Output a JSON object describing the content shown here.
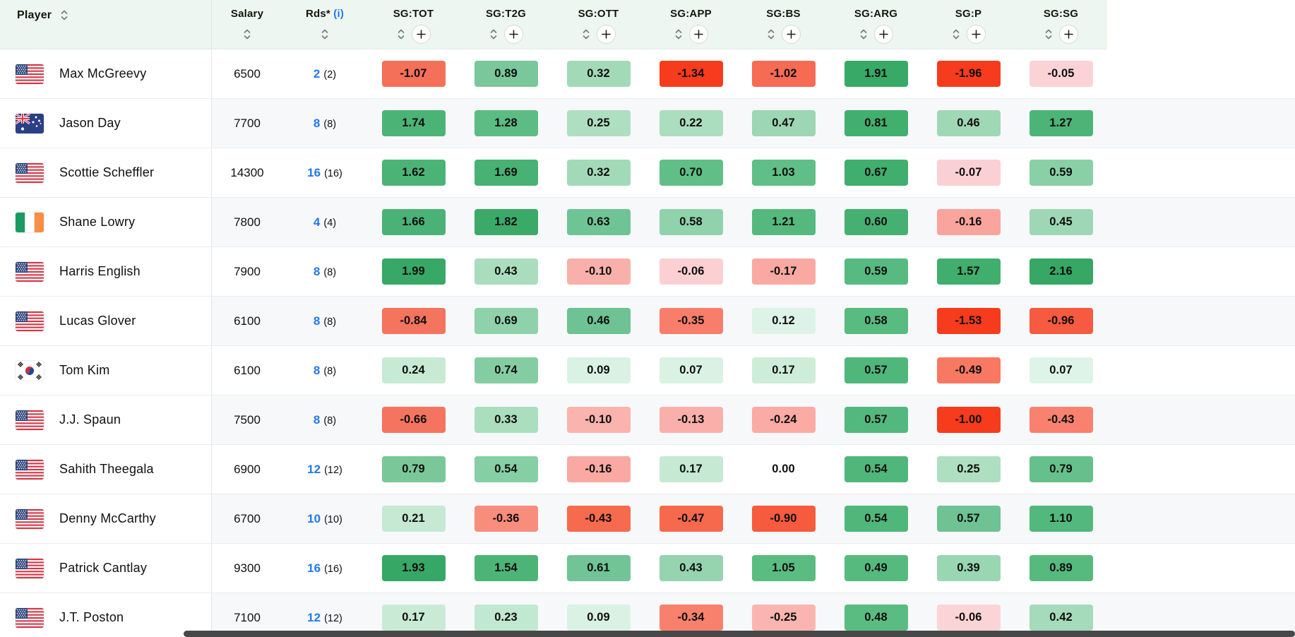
{
  "colors": {
    "header_bg": "#edf6f0",
    "link_blue": "#2278f0",
    "row_alt_bg": "#f7f8fa",
    "row_border": "#eaebed",
    "scrollbar": "#484848"
  },
  "icons": {
    "sort": "updown-chevrons",
    "add_column": "plus-circle",
    "info": "circled-i-link"
  },
  "header": {
    "columns": [
      {
        "id": "player",
        "label": "Player",
        "type": "player"
      },
      {
        "id": "salary",
        "label": "Salary",
        "type": "stat"
      },
      {
        "id": "rds",
        "label": "Rds*",
        "info_label": "(i)",
        "type": "stat"
      },
      {
        "id": "sg_tot",
        "label": "SG:TOT",
        "type": "sg"
      },
      {
        "id": "sg_t2g",
        "label": "SG:T2G",
        "type": "sg"
      },
      {
        "id": "sg_ott",
        "label": "SG:OTT",
        "type": "sg"
      },
      {
        "id": "sg_app",
        "label": "SG:APP",
        "type": "sg"
      },
      {
        "id": "sg_bs",
        "label": "SG:BS",
        "type": "sg"
      },
      {
        "id": "sg_arg",
        "label": "SG:ARG",
        "type": "sg"
      },
      {
        "id": "sg_p",
        "label": "SG:P",
        "type": "sg"
      },
      {
        "id": "sg_sg",
        "label": "SG:SG",
        "type": "sg"
      }
    ]
  },
  "players": [
    {
      "name": "Max McGreevy",
      "flag": "us",
      "salary": "6500",
      "rounds": "2",
      "rounds_paren": "(2)",
      "sg": [
        {
          "v": "-1.07",
          "bg": "#f57059"
        },
        {
          "v": "0.89",
          "bg": "#79c79a"
        },
        {
          "v": "0.32",
          "bg": "#a2dab8"
        },
        {
          "v": "-1.34",
          "bg": "#f73b1d"
        },
        {
          "v": "-1.02",
          "bg": "#f56b53"
        },
        {
          "v": "1.91",
          "bg": "#38a967"
        },
        {
          "v": "-1.96",
          "bg": "#f73b1d"
        },
        {
          "v": "-0.05",
          "bg": "#fbd3d6"
        }
      ]
    },
    {
      "name": "Jason Day",
      "flag": "au",
      "salary": "7700",
      "rounds": "8",
      "rounds_paren": "(8)",
      "sg": [
        {
          "v": "1.74",
          "bg": "#4cb377"
        },
        {
          "v": "1.28",
          "bg": "#5cbc83"
        },
        {
          "v": "0.25",
          "bg": "#aedfc1"
        },
        {
          "v": "0.22",
          "bg": "#abdebe"
        },
        {
          "v": "0.47",
          "bg": "#9cd6b3"
        },
        {
          "v": "0.81",
          "bg": "#41af6e"
        },
        {
          "v": "0.46",
          "bg": "#9fd8b5"
        },
        {
          "v": "1.27",
          "bg": "#4db478"
        }
      ]
    },
    {
      "name": "Scottie Scheffler",
      "flag": "us",
      "salary": "14300",
      "rounds": "16",
      "rounds_paren": "(16)",
      "sg": [
        {
          "v": "1.62",
          "bg": "#4cb377"
        },
        {
          "v": "1.69",
          "bg": "#48b174"
        },
        {
          "v": "0.32",
          "bg": "#a2dab8"
        },
        {
          "v": "0.70",
          "bg": "#60bf87"
        },
        {
          "v": "1.03",
          "bg": "#60bf87"
        },
        {
          "v": "0.67",
          "bg": "#40ae6d"
        },
        {
          "v": "-0.07",
          "bg": "#fbd0d4"
        },
        {
          "v": "0.59",
          "bg": "#89d0a6"
        }
      ]
    },
    {
      "name": "Shane Lowry",
      "flag": "ie",
      "salary": "7800",
      "rounds": "4",
      "rounds_paren": "(4)",
      "sg": [
        {
          "v": "1.66",
          "bg": "#4ab276"
        },
        {
          "v": "1.82",
          "bg": "#3baa69"
        },
        {
          "v": "0.63",
          "bg": "#6fc495"
        },
        {
          "v": "0.58",
          "bg": "#8fd2ab"
        },
        {
          "v": "1.21",
          "bg": "#55b97e"
        },
        {
          "v": "0.60",
          "bg": "#45b071"
        },
        {
          "v": "-0.16",
          "bg": "#f9a59d"
        },
        {
          "v": "0.45",
          "bg": "#9ed7b5"
        }
      ]
    },
    {
      "name": "Harris English",
      "flag": "us",
      "salary": "7900",
      "rounds": "8",
      "rounds_paren": "(8)",
      "sg": [
        {
          "v": "1.99",
          "bg": "#37a866"
        },
        {
          "v": "0.43",
          "bg": "#aaddbd"
        },
        {
          "v": "-0.10",
          "bg": "#f9b0aa"
        },
        {
          "v": "-0.06",
          "bg": "#fcd0d3"
        },
        {
          "v": "-0.17",
          "bg": "#f9a9a2"
        },
        {
          "v": "0.59",
          "bg": "#57ba80"
        },
        {
          "v": "1.57",
          "bg": "#40ae6d"
        },
        {
          "v": "2.16",
          "bg": "#36a765"
        }
      ]
    },
    {
      "name": "Lucas Glover",
      "flag": "us",
      "salary": "6100",
      "rounds": "8",
      "rounds_paren": "(8)",
      "sg": [
        {
          "v": "-0.84",
          "bg": "#f5745e"
        },
        {
          "v": "0.69",
          "bg": "#8ed1aa"
        },
        {
          "v": "0.46",
          "bg": "#6ec294"
        },
        {
          "v": "-0.35",
          "bg": "#f87e6b"
        },
        {
          "v": "0.12",
          "bg": "#def3e7"
        },
        {
          "v": "0.58",
          "bg": "#58bb80"
        },
        {
          "v": "-1.53",
          "bg": "#f73b1d"
        },
        {
          "v": "-0.96",
          "bg": "#f65a40"
        }
      ]
    },
    {
      "name": "Tom Kim",
      "flag": "kr",
      "salary": "6100",
      "rounds": "8",
      "rounds_paren": "(8)",
      "sg": [
        {
          "v": "0.24",
          "bg": "#c7ead5"
        },
        {
          "v": "0.74",
          "bg": "#84cda2"
        },
        {
          "v": "0.09",
          "bg": "#daf2e4"
        },
        {
          "v": "0.07",
          "bg": "#daf2e4"
        },
        {
          "v": "0.17",
          "bg": "#cdedd9"
        },
        {
          "v": "0.57",
          "bg": "#50b77b"
        },
        {
          "v": "-0.49",
          "bg": "#f87862"
        },
        {
          "v": "0.07",
          "bg": "#def4e8"
        }
      ]
    },
    {
      "name": "J.J. Spaun",
      "flag": "us",
      "salary": "7500",
      "rounds": "8",
      "rounds_paren": "(8)",
      "sg": [
        {
          "v": "-0.66",
          "bg": "#f5745f"
        },
        {
          "v": "0.33",
          "bg": "#aadebd"
        },
        {
          "v": "-0.10",
          "bg": "#fab3ad"
        },
        {
          "v": "-0.13",
          "bg": "#fab0aa"
        },
        {
          "v": "-0.24",
          "bg": "#faaba4"
        },
        {
          "v": "0.57",
          "bg": "#53b87d"
        },
        {
          "v": "-1.00",
          "bg": "#f73b1d"
        },
        {
          "v": "-0.43",
          "bg": "#f8816f"
        }
      ]
    },
    {
      "name": "Sahith Theegala",
      "flag": "us",
      "salary": "6900",
      "rounds": "12",
      "rounds_paren": "(12)",
      "sg": [
        {
          "v": "0.79",
          "bg": "#7ac899"
        },
        {
          "v": "0.54",
          "bg": "#86cfa4"
        },
        {
          "v": "-0.16",
          "bg": "#f9a9a2"
        },
        {
          "v": "0.17",
          "bg": "#c5e9d3"
        },
        {
          "v": "0.00",
          "bg": null
        },
        {
          "v": "0.54",
          "bg": "#50b77b"
        },
        {
          "v": "0.25",
          "bg": "#aedfc1"
        },
        {
          "v": "0.79",
          "bg": "#65c08b"
        }
      ]
    },
    {
      "name": "Denny McCarthy",
      "flag": "us",
      "salary": "6700",
      "rounds": "10",
      "rounds_paren": "(10)",
      "sg": [
        {
          "v": "0.21",
          "bg": "#c5e9d3"
        },
        {
          "v": "-0.36",
          "bg": "#f98d7c"
        },
        {
          "v": "-0.43",
          "bg": "#f66a4e"
        },
        {
          "v": "-0.47",
          "bg": "#f6694d"
        },
        {
          "v": "-0.90",
          "bg": "#f65b3e"
        },
        {
          "v": "0.54",
          "bg": "#50b77b"
        },
        {
          "v": "0.57",
          "bg": "#6ec293"
        },
        {
          "v": "1.10",
          "bg": "#52b87d"
        }
      ]
    },
    {
      "name": "Patrick Cantlay",
      "flag": "us",
      "salary": "9300",
      "rounds": "16",
      "rounds_paren": "(16)",
      "sg": [
        {
          "v": "1.93",
          "bg": "#36a765"
        },
        {
          "v": "1.54",
          "bg": "#4db478"
        },
        {
          "v": "0.61",
          "bg": "#70c496"
        },
        {
          "v": "0.43",
          "bg": "#95d4af"
        },
        {
          "v": "1.05",
          "bg": "#5bbc82"
        },
        {
          "v": "0.49",
          "bg": "#56ba7f"
        },
        {
          "v": "0.39",
          "bg": "#99d6b2"
        },
        {
          "v": "0.89",
          "bg": "#56ba7f"
        }
      ]
    },
    {
      "name": "J.T. Poston",
      "flag": "us",
      "salary": "7100",
      "rounds": "12",
      "rounds_paren": "(12)",
      "sg": [
        {
          "v": "0.17",
          "bg": "#c9ebd6"
        },
        {
          "v": "0.23",
          "bg": "#c1e8d0"
        },
        {
          "v": "0.09",
          "bg": "#daf2e4"
        },
        {
          "v": "-0.34",
          "bg": "#f8816e"
        },
        {
          "v": "-0.25",
          "bg": "#fbb5b0"
        },
        {
          "v": "0.48",
          "bg": "#5bbc81"
        },
        {
          "v": "-0.06",
          "bg": "#fbd4d7"
        },
        {
          "v": "0.42",
          "bg": "#a5dbba"
        }
      ]
    }
  ]
}
